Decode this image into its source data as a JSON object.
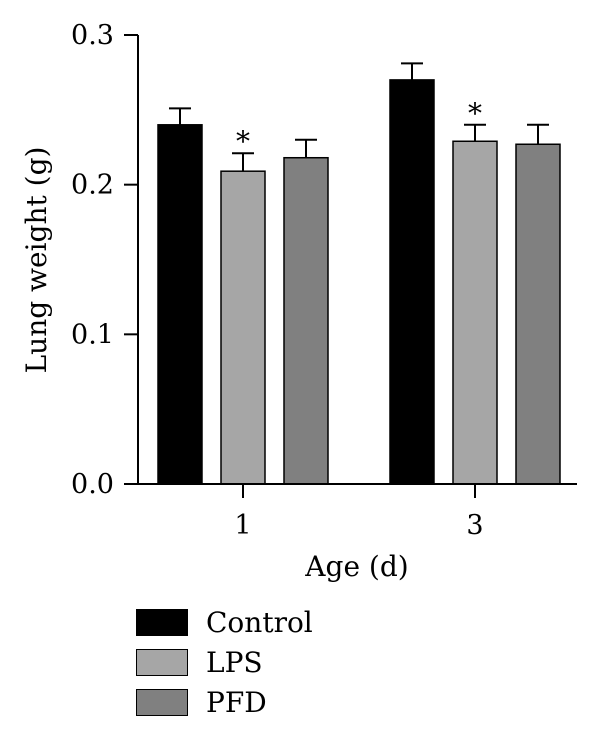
{
  "chart_data": {
    "type": "bar",
    "xlabel": "Age (d)",
    "ylabel": "Lung weight (g)",
    "ylim": [
      0,
      0.3
    ],
    "yticks": [
      "0.0",
      "0.1",
      "0.2",
      "0.3"
    ],
    "categories": [
      "1",
      "3"
    ],
    "series": [
      {
        "name": "Control",
        "color": "#000000",
        "values": [
          0.24,
          0.27
        ],
        "errors": [
          0.011,
          0.011
        ],
        "significant": [
          false,
          false
        ]
      },
      {
        "name": "LPS",
        "color": "#a6a6a6",
        "values": [
          0.209,
          0.229
        ],
        "errors": [
          0.012,
          0.011
        ],
        "significant": [
          true,
          true
        ]
      },
      {
        "name": "PFD",
        "color": "#808080",
        "values": [
          0.218,
          0.227
        ],
        "errors": [
          0.012,
          0.013
        ],
        "significant": [
          false,
          false
        ]
      }
    ],
    "annotation": "*",
    "grid": false,
    "legend_position": "bottom-left"
  }
}
